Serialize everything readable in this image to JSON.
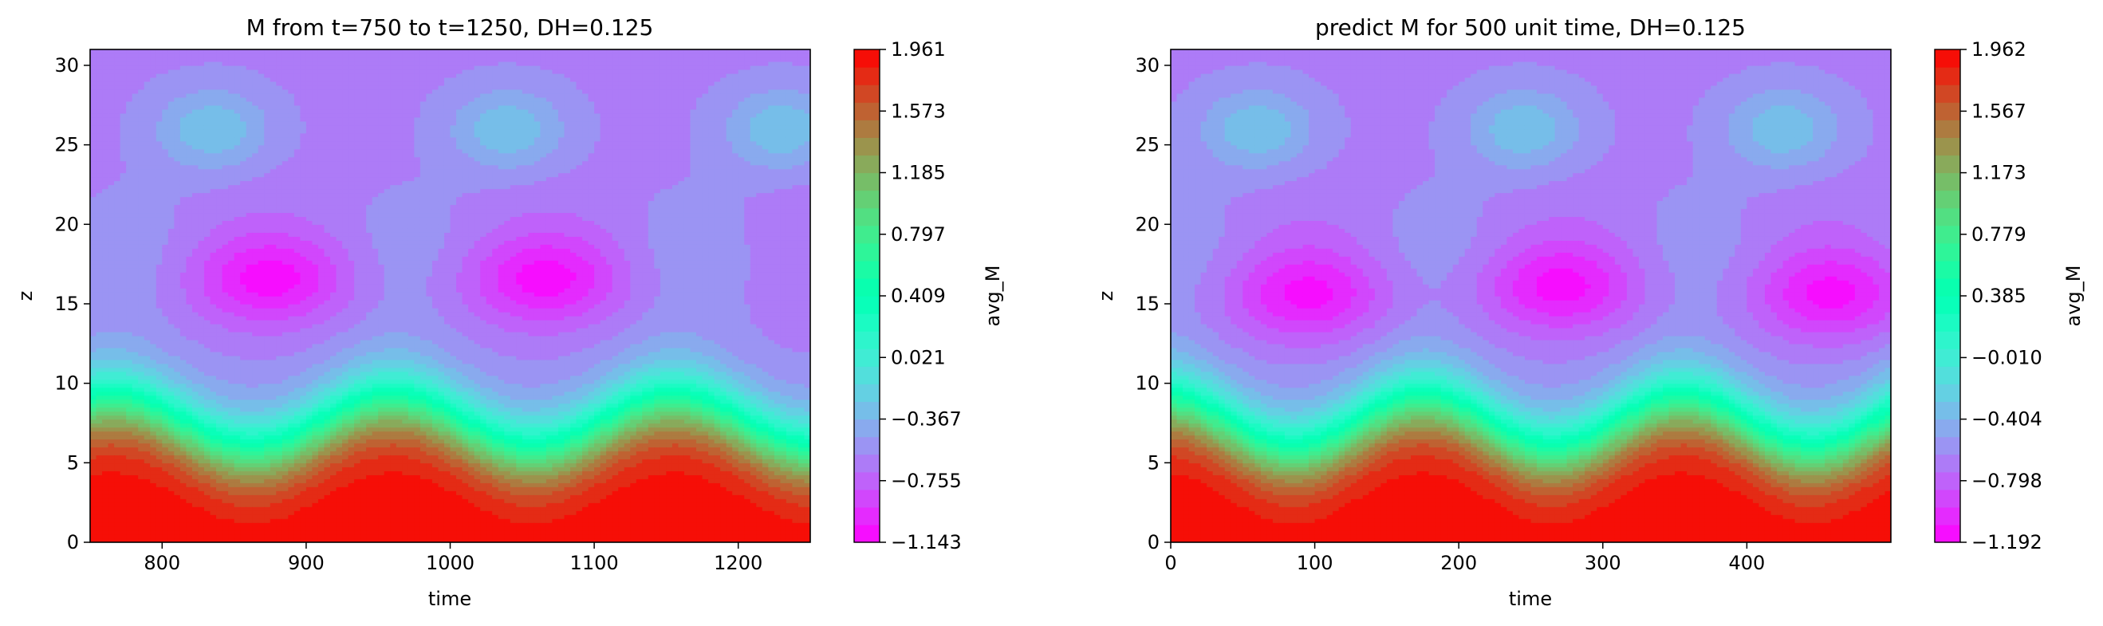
{
  "chart_data": [
    {
      "type": "heatmap",
      "title": "M from t=750 to t=1250, DH=0.125",
      "xlabel": "time",
      "ylabel": "z",
      "xlim": [
        750,
        1250
      ],
      "ylim": [
        0,
        31
      ],
      "x_ticks": [
        800,
        900,
        1000,
        1100,
        1200
      ],
      "x_tick_labels": [
        "800",
        "900",
        "1000",
        "1100",
        "1200"
      ],
      "y_ticks": [
        0,
        5,
        10,
        15,
        20,
        25,
        30
      ],
      "y_tick_labels": [
        "0",
        "5",
        "10",
        "15",
        "20",
        "25",
        "30"
      ],
      "colormap": "rainbow",
      "field": {
        "min": -1.143,
        "max": 1.961,
        "wave_period": 195,
        "wave_phase_t": 960,
        "trough_t": [
          850,
          1050,
          1240
        ],
        "minimum_region_center": [
          {
            "t": 875,
            "z": 16.5
          },
          {
            "t": 1065,
            "z": 16.5
          }
        ],
        "secondary_maximum_center": [
          {
            "t": 835,
            "z": 26
          },
          {
            "t": 1040,
            "z": 26
          },
          {
            "t": 1230,
            "z": 26
          }
        ]
      },
      "colorbar": {
        "label": "avg_M",
        "min": -1.143,
        "max": 1.961,
        "ticks": [
          -1.143,
          -0.755,
          -0.367,
          0.021,
          0.409,
          0.797,
          1.185,
          1.573,
          1.961
        ],
        "tick_labels": [
          "−1.143",
          "−0.755",
          "−0.367",
          "0.021",
          "0.409",
          "0.797",
          "1.185",
          "1.573",
          "1.961"
        ]
      }
    },
    {
      "type": "heatmap",
      "title": "predict M for 500 unit time, DH=0.125",
      "xlabel": "time",
      "ylabel": "z",
      "xlim": [
        0,
        500
      ],
      "ylim": [
        0,
        31
      ],
      "x_ticks": [
        0,
        100,
        200,
        300,
        400
      ],
      "x_tick_labels": [
        "0",
        "100",
        "200",
        "300",
        "400"
      ],
      "y_ticks": [
        0,
        5,
        10,
        15,
        20,
        25,
        30
      ],
      "y_tick_labels": [
        "0",
        "5",
        "10",
        "15",
        "20",
        "25",
        "30"
      ],
      "colormap": "rainbow",
      "field": {
        "min": -1.192,
        "max": 1.962,
        "wave_period": 180,
        "wave_phase_t": 175,
        "trough_t": [
          85,
          265,
          445
        ],
        "minimum_region_center": [
          {
            "t": 95,
            "z": 15.5
          },
          {
            "t": 270,
            "z": 16
          },
          {
            "t": 460,
            "z": 15.5
          }
        ],
        "secondary_maximum_center": [
          {
            "t": 60,
            "z": 26
          },
          {
            "t": 245,
            "z": 26
          },
          {
            "t": 425,
            "z": 26
          }
        ]
      },
      "colorbar": {
        "label": "avg_M",
        "min": -1.192,
        "max": 1.962,
        "ticks": [
          -1.192,
          -0.798,
          -0.404,
          -0.01,
          0.385,
          0.779,
          1.173,
          1.567,
          1.962
        ],
        "tick_labels": [
          "−1.192",
          "−0.798",
          "−0.404",
          "−0.010",
          "0.385",
          "0.779",
          "1.173",
          "1.567",
          "1.962"
        ]
      }
    }
  ]
}
